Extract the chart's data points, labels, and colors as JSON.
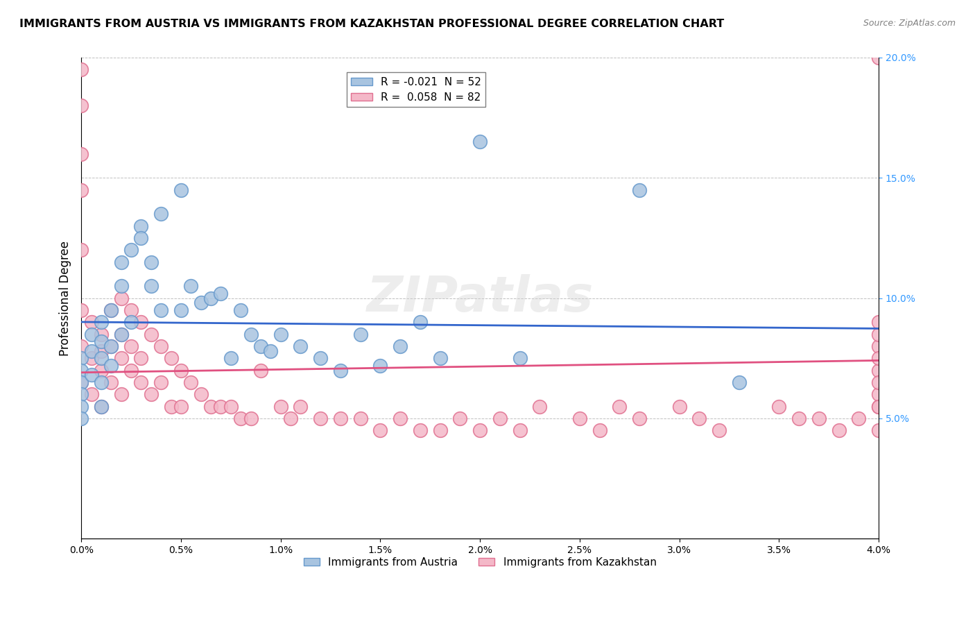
{
  "title": "IMMIGRANTS FROM AUSTRIA VS IMMIGRANTS FROM KAZAKHSTAN PROFESSIONAL DEGREE CORRELATION CHART",
  "source": "Source: ZipAtlas.com",
  "ylabel": "Professional Degree",
  "xlabel_bottom": "",
  "legend_austria": "R = -0.021  N = 52",
  "legend_kazakhstan": "R =  0.058  N = 82",
  "austria_color": "#a8c4e0",
  "austria_edge": "#6699cc",
  "kazakhstan_color": "#f4b8c8",
  "kazakhstan_edge": "#e07090",
  "austria_line_color": "#3366cc",
  "kazakhstan_line_color": "#e05080",
  "watermark": "ZIPatlas",
  "xmin": 0.0,
  "xmax": 4.0,
  "ymin": 0.0,
  "ymax": 20.0,
  "austria_R": -0.021,
  "austria_N": 52,
  "kazakhstan_R": 0.058,
  "kazakhstan_N": 82,
  "austria_x": [
    0.0,
    0.0,
    0.0,
    0.0,
    0.0,
    0.0,
    0.05,
    0.05,
    0.05,
    0.1,
    0.1,
    0.1,
    0.1,
    0.1,
    0.15,
    0.15,
    0.15,
    0.2,
    0.2,
    0.2,
    0.25,
    0.25,
    0.3,
    0.3,
    0.35,
    0.35,
    0.4,
    0.4,
    0.5,
    0.5,
    0.55,
    0.6,
    0.65,
    0.7,
    0.75,
    0.8,
    0.85,
    0.9,
    0.95,
    1.0,
    1.1,
    1.2,
    1.3,
    1.4,
    1.5,
    1.6,
    1.7,
    1.8,
    2.0,
    2.2,
    2.8,
    3.3
  ],
  "austria_y": [
    7.5,
    7.0,
    6.5,
    6.0,
    5.5,
    5.0,
    8.5,
    7.8,
    6.8,
    9.0,
    8.2,
    7.5,
    6.5,
    5.5,
    9.5,
    8.0,
    7.2,
    11.5,
    10.5,
    8.5,
    12.0,
    9.0,
    13.0,
    12.5,
    11.5,
    10.5,
    13.5,
    9.5,
    14.5,
    9.5,
    10.5,
    9.8,
    10.0,
    10.2,
    7.5,
    9.5,
    8.5,
    8.0,
    7.8,
    8.5,
    8.0,
    7.5,
    7.0,
    8.5,
    7.2,
    8.0,
    9.0,
    7.5,
    16.5,
    7.5,
    14.5,
    6.5
  ],
  "kazakhstan_x": [
    0.0,
    0.0,
    0.0,
    0.0,
    0.0,
    0.0,
    0.0,
    0.0,
    0.05,
    0.05,
    0.05,
    0.1,
    0.1,
    0.1,
    0.1,
    0.15,
    0.15,
    0.15,
    0.2,
    0.2,
    0.2,
    0.2,
    0.25,
    0.25,
    0.25,
    0.3,
    0.3,
    0.3,
    0.35,
    0.35,
    0.4,
    0.4,
    0.45,
    0.45,
    0.5,
    0.5,
    0.55,
    0.6,
    0.65,
    0.7,
    0.75,
    0.8,
    0.85,
    0.9,
    1.0,
    1.05,
    1.1,
    1.2,
    1.3,
    1.4,
    1.5,
    1.6,
    1.7,
    1.8,
    1.9,
    2.0,
    2.1,
    2.2,
    2.3,
    2.5,
    2.6,
    2.7,
    2.8,
    3.0,
    3.1,
    3.2,
    3.5,
    3.6,
    3.7,
    3.8,
    3.9,
    4.0,
    4.0,
    4.0,
    4.0,
    4.0,
    4.0,
    4.0,
    4.0,
    4.0,
    4.0,
    4.0
  ],
  "kazakhstan_y": [
    19.5,
    18.0,
    16.0,
    14.5,
    12.0,
    9.5,
    8.0,
    6.5,
    9.0,
    7.5,
    6.0,
    8.5,
    7.8,
    7.0,
    5.5,
    9.5,
    8.0,
    6.5,
    10.0,
    8.5,
    7.5,
    6.0,
    9.5,
    8.0,
    7.0,
    9.0,
    7.5,
    6.5,
    8.5,
    6.0,
    8.0,
    6.5,
    7.5,
    5.5,
    7.0,
    5.5,
    6.5,
    6.0,
    5.5,
    5.5,
    5.5,
    5.0,
    5.0,
    7.0,
    5.5,
    5.0,
    5.5,
    5.0,
    5.0,
    5.0,
    4.5,
    5.0,
    4.5,
    4.5,
    5.0,
    4.5,
    5.0,
    4.5,
    5.5,
    5.0,
    4.5,
    5.5,
    5.0,
    5.5,
    5.0,
    4.5,
    5.5,
    5.0,
    5.0,
    4.5,
    5.0,
    20.0,
    5.5,
    6.0,
    7.0,
    8.0,
    4.5,
    5.5,
    6.5,
    7.5,
    8.5,
    9.0
  ]
}
